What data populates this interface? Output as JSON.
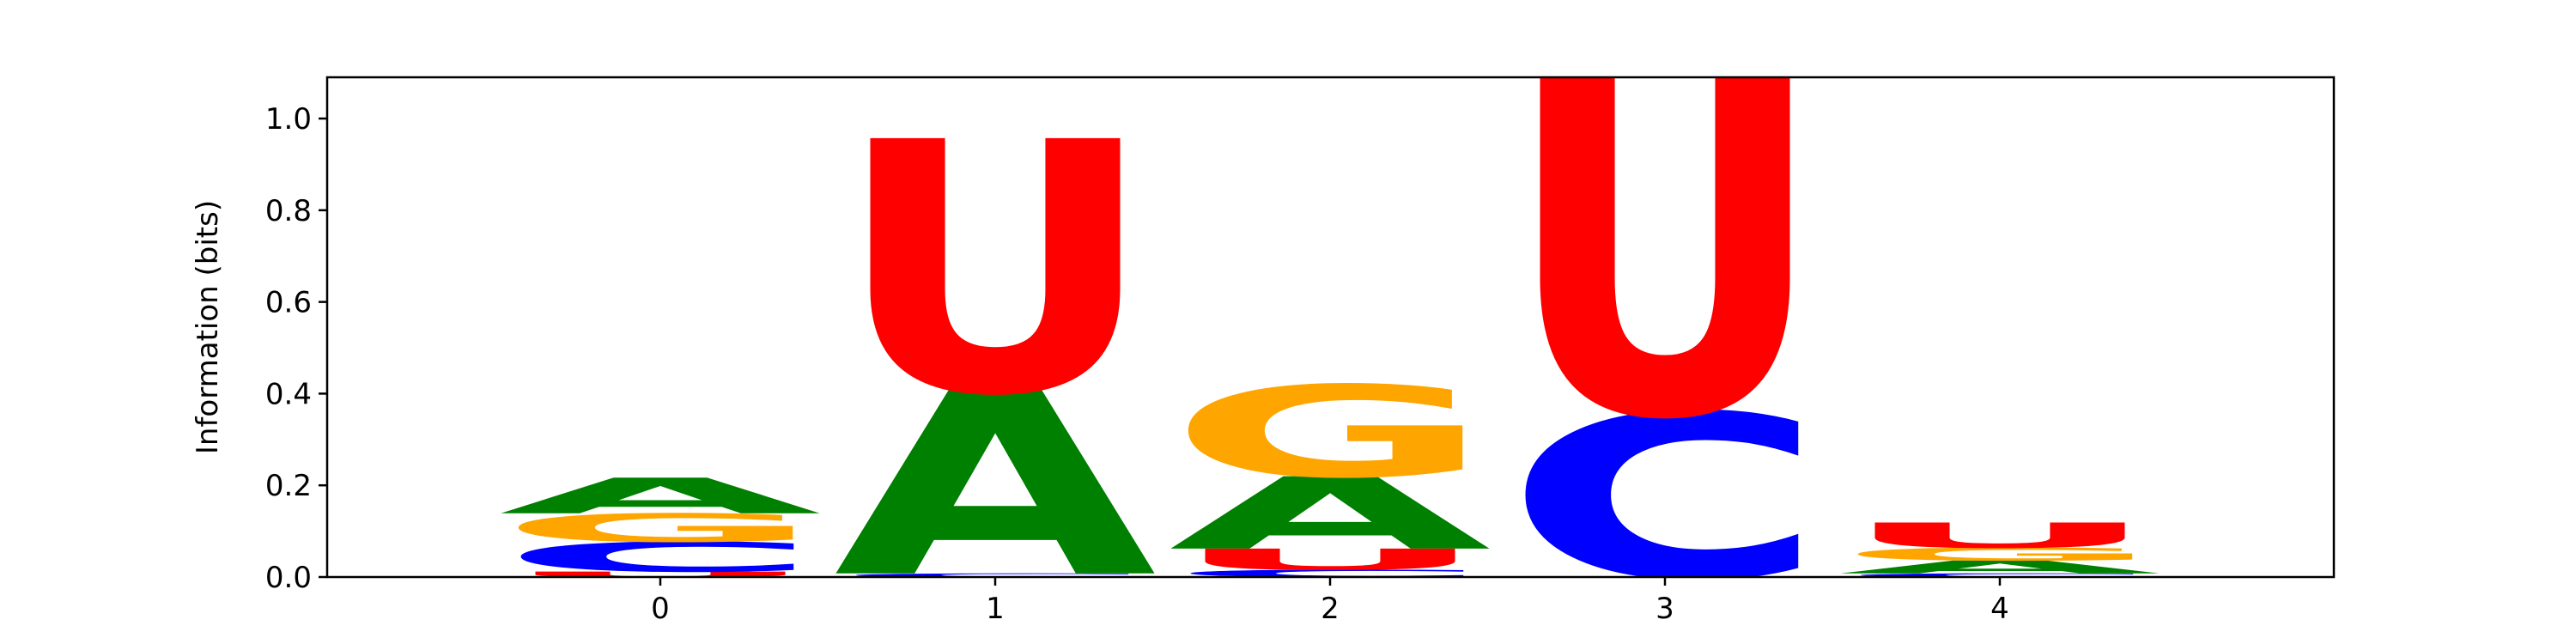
{
  "chart_data": {
    "type": "sequence-logo",
    "title": "",
    "xlabel": "",
    "ylabel": "Information (bits)",
    "ylim": [
      0,
      1.09
    ],
    "y_ticks": [
      "0.0",
      "0.2",
      "0.4",
      "0.6",
      "0.8",
      "1.0"
    ],
    "positions": [
      "0",
      "1",
      "2",
      "3",
      "4"
    ],
    "colors": {
      "A": "#008000",
      "C": "#0000ff",
      "G": "#ffa500",
      "U": "#ff0000"
    },
    "stacks": [
      {
        "position": "0",
        "letters": [
          {
            "base": "U",
            "bits": 0.012
          },
          {
            "base": "C",
            "bits": 0.065
          },
          {
            "base": "G",
            "bits": 0.062
          },
          {
            "base": "A",
            "bits": 0.078
          }
        ]
      },
      {
        "position": "1",
        "letters": [
          {
            "base": "C",
            "bits": 0.008
          },
          {
            "base": "A",
            "bits": 0.4
          },
          {
            "base": "U",
            "bits": 0.55
          }
        ]
      },
      {
        "position": "2",
        "letters": [
          {
            "base": "C",
            "bits": 0.016
          },
          {
            "base": "U",
            "bits": 0.046
          },
          {
            "base": "A",
            "bits": 0.158
          },
          {
            "base": "G",
            "bits": 0.2
          }
        ]
      },
      {
        "position": "3",
        "letters": [
          {
            "base": "C",
            "bits": 0.36
          },
          {
            "base": "U",
            "bits": 0.73
          }
        ]
      },
      {
        "position": "4",
        "letters": [
          {
            "base": "C",
            "bits": 0.008
          },
          {
            "base": "A",
            "bits": 0.028
          },
          {
            "base": "G",
            "bits": 0.028
          },
          {
            "base": "U",
            "bits": 0.055
          }
        ]
      }
    ]
  }
}
